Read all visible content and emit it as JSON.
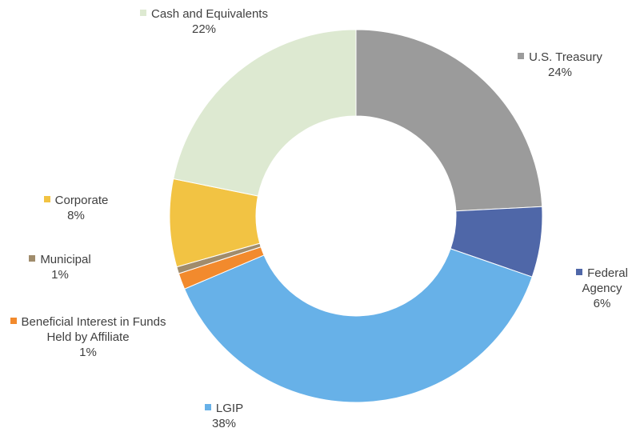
{
  "chart_data": {
    "type": "donut",
    "categories": [
      "U.S. Treasury",
      "Federal Agency",
      "LGIP",
      "Beneficial Interest in Funds Held by Affiliate",
      "Municipal",
      "Corporate",
      "Cash and Equivalents"
    ],
    "values": [
      24.2,
      6.1,
      38.3,
      1.4,
      0.6,
      7.6,
      21.8
    ],
    "value_labels": [
      "24%",
      "6%",
      "38%",
      "1%",
      "1%",
      "8%",
      "22%"
    ],
    "colors": [
      "#9b9b9b",
      "#4f67a8",
      "#67b1e8",
      "#f28a2d",
      "#a08c6c",
      "#f2c343",
      "#dde9d1"
    ]
  }
}
